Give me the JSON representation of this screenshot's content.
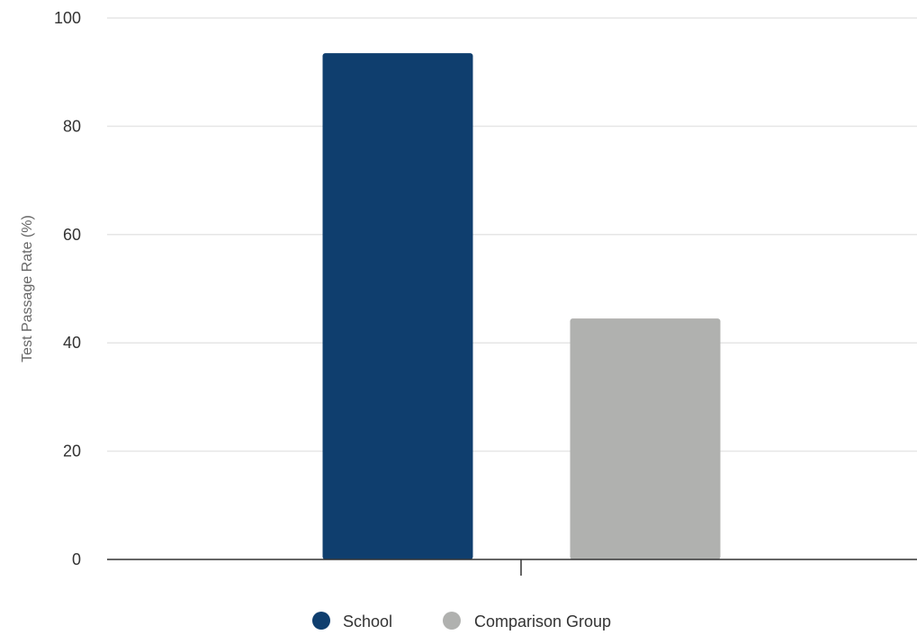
{
  "chart_data": {
    "type": "bar",
    "categories": [
      ""
    ],
    "series": [
      {
        "name": "School",
        "values": [
          93.5
        ],
        "color": "#0f3e6e"
      },
      {
        "name": "Comparison Group",
        "values": [
          44.5
        ],
        "color": "#b0b1af"
      }
    ],
    "ylabel": "Test Passage Rate (%)",
    "xlabel": "",
    "ylim": [
      0,
      100
    ],
    "yticks": [
      "0",
      "20",
      "40",
      "60",
      "80",
      "100"
    ],
    "grid": true,
    "legend_position": "bottom-center"
  }
}
